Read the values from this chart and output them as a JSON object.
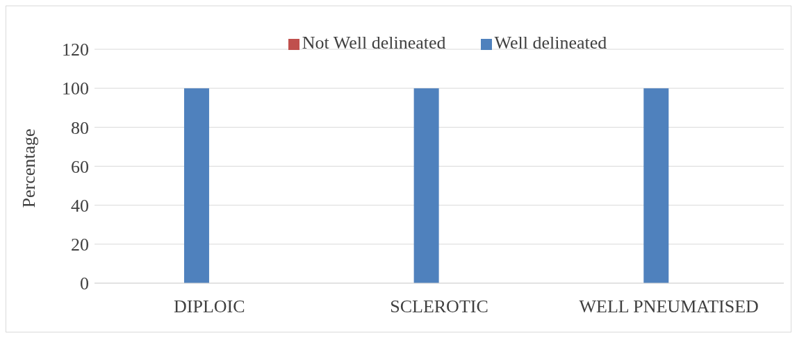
{
  "chart_data": {
    "type": "bar",
    "ylabel": "Percentage",
    "categories": [
      "DIPLOIC",
      "SCLEROTIC",
      "WELL PNEUMATISED"
    ],
    "series": [
      {
        "name": "Well delineated",
        "color": "#4f81bd",
        "values": [
          100,
          100,
          100
        ]
      },
      {
        "name": "Not Well delineated",
        "color": "#c0504d",
        "values": [
          0,
          0,
          0
        ]
      }
    ],
    "ylim": [
      0,
      120
    ],
    "yticks": [
      0,
      20,
      40,
      60,
      80,
      100,
      120
    ],
    "grid": "y",
    "legend": "top"
  }
}
